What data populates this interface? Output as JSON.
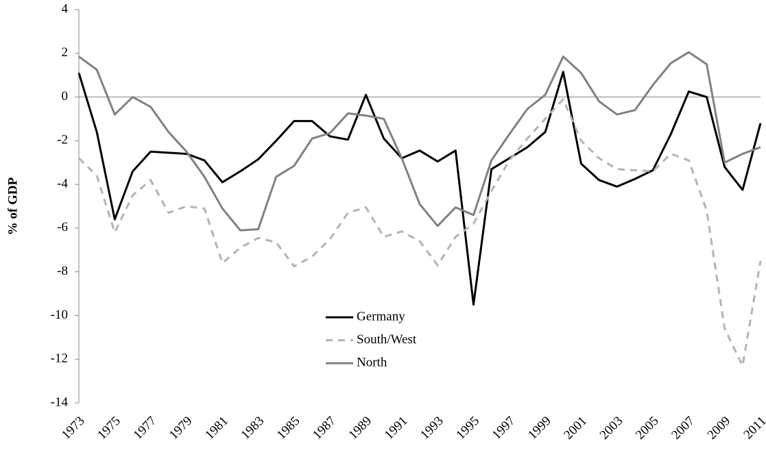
{
  "chart_data": {
    "type": "line",
    "ylabel": "% of GDP",
    "x": [
      1973,
      1974,
      1975,
      1976,
      1977,
      1978,
      1979,
      1980,
      1981,
      1982,
      1983,
      1984,
      1985,
      1986,
      1987,
      1988,
      1989,
      1990,
      1991,
      1992,
      1993,
      1994,
      1995,
      1996,
      1997,
      1998,
      1999,
      2000,
      2001,
      2002,
      2003,
      2004,
      2005,
      2006,
      2007,
      2008,
      2009,
      2010,
      2011
    ],
    "xlim": [
      1973,
      2011
    ],
    "xticks": [
      1973,
      1975,
      1977,
      1979,
      1981,
      1983,
      1985,
      1987,
      1989,
      1991,
      1993,
      1995,
      1997,
      1999,
      2001,
      2003,
      2005,
      2007,
      2009,
      2011
    ],
    "ylim": [
      -14,
      4
    ],
    "yticks": [
      -14,
      -12,
      -10,
      -8,
      -6,
      -4,
      -2,
      0,
      2,
      4
    ],
    "grid": false,
    "legend": "center",
    "series": [
      {
        "name": "Germany",
        "color": "#000000",
        "dashed": false,
        "values": [
          1.1,
          -1.6,
          -5.6,
          -3.4,
          -2.5,
          -2.55,
          -2.6,
          -2.9,
          -3.9,
          -3.4,
          -2.85,
          -2.0,
          -1.1,
          -1.1,
          -1.8,
          -1.95,
          0.1,
          -1.9,
          -2.8,
          -2.45,
          -2.95,
          -2.45,
          -9.5,
          -3.3,
          -2.8,
          -2.3,
          -1.6,
          1.15,
          -3.05,
          -3.8,
          -4.1,
          -3.75,
          -3.35,
          -1.7,
          0.25,
          0.0,
          -3.2,
          -4.25,
          -1.2
        ]
      },
      {
        "name": "South/West",
        "color": "#b3b3b3",
        "dashed": true,
        "values": [
          -2.8,
          -3.6,
          -6.2,
          -4.5,
          -3.8,
          -5.3,
          -5.0,
          -5.1,
          -7.6,
          -6.9,
          -6.45,
          -6.65,
          -7.75,
          -7.3,
          -6.5,
          -5.3,
          -5.05,
          -6.4,
          -6.15,
          -6.6,
          -7.7,
          -6.4,
          -5.8,
          -4.3,
          -2.9,
          -1.9,
          -1.0,
          -0.1,
          -2.0,
          -2.8,
          -3.3,
          -3.35,
          -3.4,
          -2.6,
          -2.9,
          -5.2,
          -10.6,
          -12.3,
          -7.5
        ]
      },
      {
        "name": "North",
        "color": "#808080",
        "dashed": false,
        "values": [
          1.85,
          1.25,
          -0.8,
          0.0,
          -0.45,
          -1.6,
          -2.5,
          -3.65,
          -5.1,
          -6.1,
          -6.05,
          -3.65,
          -3.15,
          -1.9,
          -1.65,
          -0.75,
          -0.85,
          -1.0,
          -2.8,
          -4.9,
          -5.9,
          -5.05,
          -5.4,
          -2.9,
          -1.7,
          -0.55,
          0.1,
          1.85,
          1.1,
          -0.2,
          -0.8,
          -0.6,
          0.55,
          1.55,
          2.05,
          1.5,
          -3.0,
          -2.6,
          -2.3
        ]
      }
    ]
  }
}
